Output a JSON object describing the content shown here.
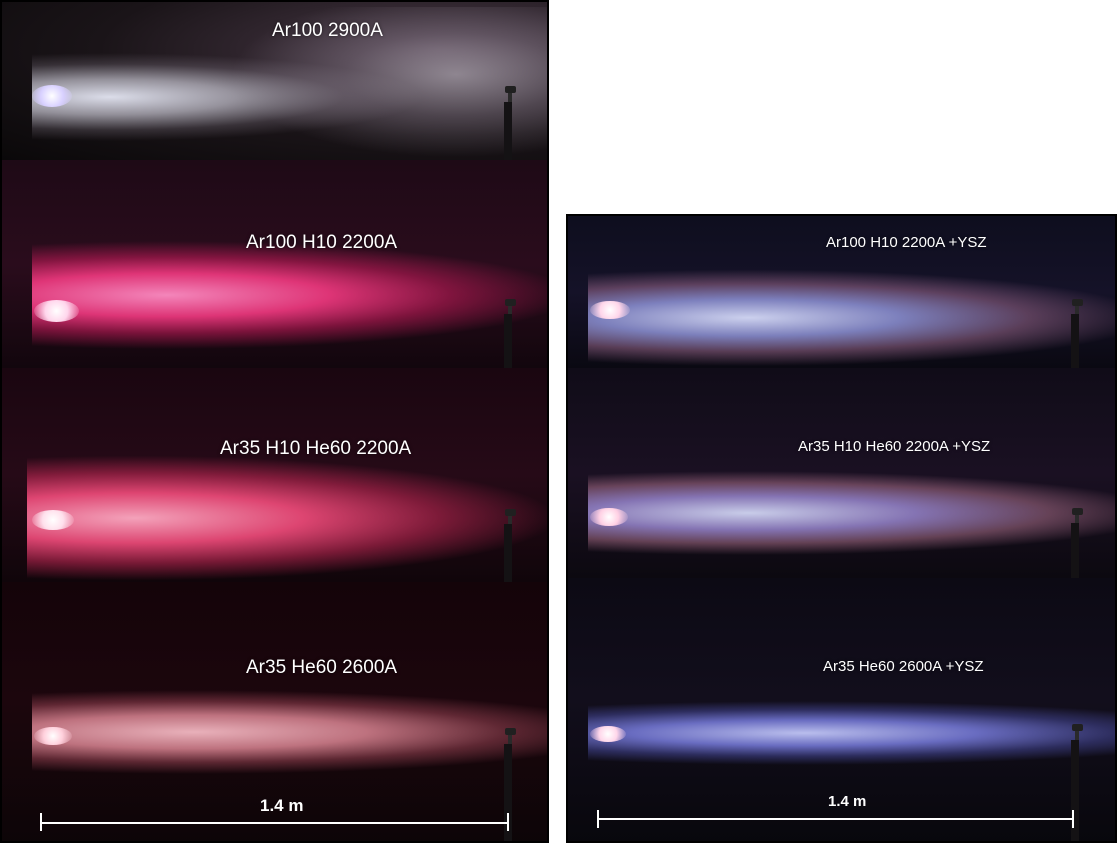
{
  "left_panel": {
    "strips": [
      {
        "label": "Ar100 2900A",
        "plume_color": "#d6d4da"
      },
      {
        "label": "Ar100 H10 2200A",
        "plume_color": "#ff3d86"
      },
      {
        "label": "Ar35 H10 He60 2200A",
        "plume_color": "#ff4f7e"
      },
      {
        "label": "Ar35 He60 2600A",
        "plume_color": "#f7a3b0"
      }
    ],
    "scale_label": "1.4 m"
  },
  "right_panel": {
    "strips": [
      {
        "label": "Ar100 H10 2200A +YSZ",
        "plume_color": "#a8a8f0"
      },
      {
        "label": "Ar35 H10 He60 2200A +YSZ",
        "plume_color": "#b99ad8"
      },
      {
        "label": "Ar35 He60 2600A +YSZ",
        "plume_color": "#8c8cf0"
      }
    ],
    "scale_label": "1.4 m"
  }
}
